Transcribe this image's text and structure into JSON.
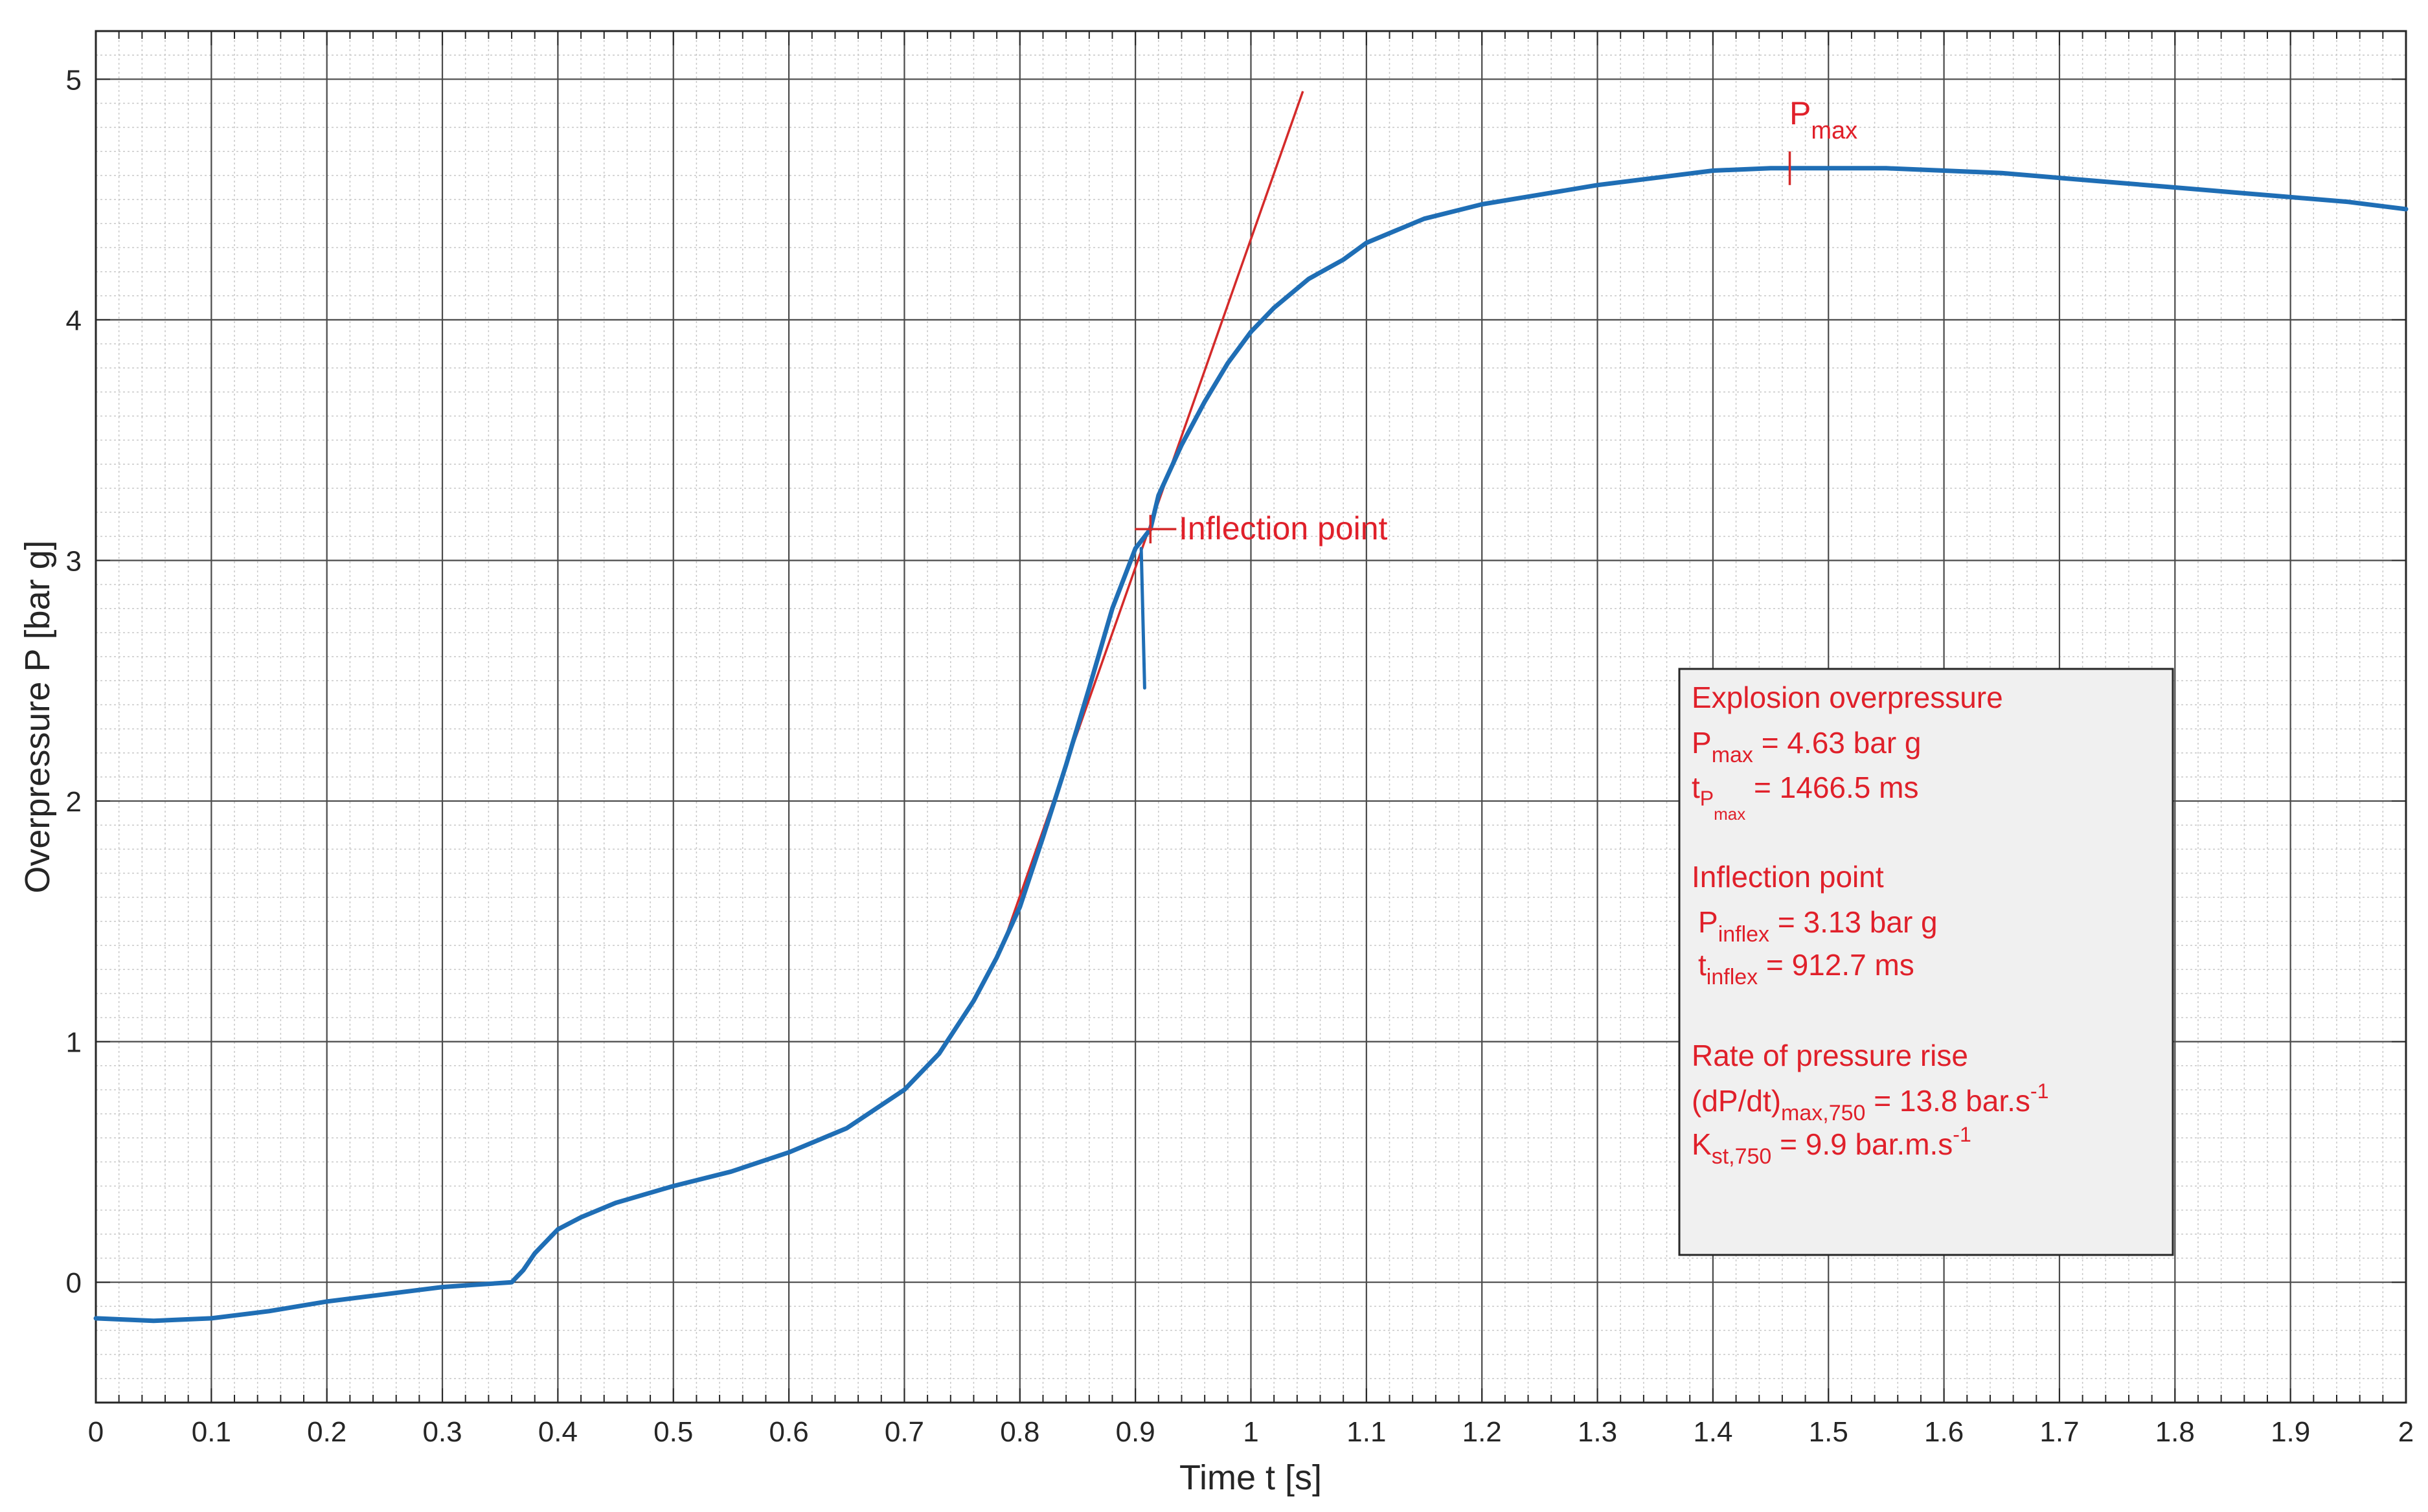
{
  "chart_data": {
    "type": "line",
    "title": "",
    "xlabel": "Time t [s]",
    "ylabel": "Overpressure P [bar g]",
    "xlim": [
      0,
      2
    ],
    "ylim": [
      -0.5,
      5.2
    ],
    "x_ticks": [
      0,
      0.1,
      0.2,
      0.3,
      0.4,
      0.5,
      0.6,
      0.7,
      0.8,
      0.9,
      1,
      1.1,
      1.2,
      1.3,
      1.4,
      1.5,
      1.6,
      1.7,
      1.8,
      1.9,
      2
    ],
    "x_tick_labels": [
      "0",
      "0.1",
      "0.2",
      "0.3",
      "0.4",
      "0.5",
      "0.6",
      "0.7",
      "0.8",
      "0.9",
      "1",
      "1.1",
      "1.2",
      "1.3",
      "1.4",
      "1.5",
      "1.6",
      "1.7",
      "1.8",
      "1.9",
      "2"
    ],
    "y_ticks": [
      0,
      1,
      2,
      3,
      4,
      5
    ],
    "y_tick_labels": [
      "0",
      "1",
      "2",
      "3",
      "4",
      "5"
    ],
    "grid": true,
    "minor_grid": true,
    "series": [
      {
        "color": "#1f6eb5",
        "x": [
          0,
          0.05,
          0.1,
          0.15,
          0.2,
          0.25,
          0.3,
          0.33,
          0.36,
          0.37,
          0.38,
          0.4,
          0.42,
          0.45,
          0.5,
          0.55,
          0.6,
          0.65,
          0.7,
          0.73,
          0.76,
          0.78,
          0.8,
          0.82,
          0.84,
          0.86,
          0.88,
          0.9,
          0.913,
          0.92,
          0.94,
          0.96,
          0.98,
          1.0,
          1.02,
          1.05,
          1.08,
          1.1,
          1.15,
          1.2,
          1.25,
          1.3,
          1.35,
          1.4,
          1.45,
          1.4665,
          1.5,
          1.55,
          1.6,
          1.65,
          1.7,
          1.75,
          1.8,
          1.85,
          1.9,
          1.95,
          2.0
        ],
        "y": [
          -0.15,
          -0.16,
          -0.15,
          -0.12,
          -0.08,
          -0.05,
          -0.02,
          -0.01,
          0.0,
          0.05,
          0.12,
          0.22,
          0.27,
          0.33,
          0.4,
          0.46,
          0.54,
          0.64,
          0.8,
          0.95,
          1.17,
          1.35,
          1.56,
          1.85,
          2.15,
          2.47,
          2.8,
          3.05,
          3.13,
          3.27,
          3.48,
          3.66,
          3.82,
          3.95,
          4.05,
          4.17,
          4.25,
          4.32,
          4.42,
          4.48,
          4.52,
          4.56,
          4.59,
          4.62,
          4.63,
          4.63,
          4.63,
          4.63,
          4.62,
          4.61,
          4.59,
          4.57,
          4.55,
          4.53,
          4.51,
          4.49,
          4.46
        ]
      },
      {
        "color": "#1f6eb5",
        "x": [
          0.905,
          0.908
        ],
        "y": [
          3.05,
          2.47
        ]
      }
    ],
    "tangent_line": {
      "color": "#d42a2a",
      "x": [
        0.785,
        1.045
      ],
      "y": [
        1.4,
        4.95
      ]
    },
    "markers": [
      {
        "label": "P",
        "subscript": "max",
        "x": 1.4665,
        "y": 4.63
      },
      {
        "label": "Inflection point",
        "subscript": "",
        "x": 0.913,
        "y": 3.13
      }
    ],
    "annotation_box": {
      "heading_1": "Explosion overpressure",
      "pmax_label": "P",
      "pmax_sub": "max",
      "pmax_value": " = 4.63 bar g",
      "tpmax_label": "t",
      "tpmax_sub": "P",
      "tpmax_subsub": "max",
      "tpmax_value": " = 1466.5 ms",
      "heading_2": "Inflection point",
      "pinflex_label": "P",
      "pinflex_sub": "inflex",
      "pinflex_value": " = 3.13 bar g",
      "tinflex_label": "t",
      "tinflex_sub": "inflex",
      "tinflex_value": " = 912.7 ms",
      "heading_3": "Rate of pressure rise",
      "dpdt_label": "(dP/dt)",
      "dpdt_sub": "max,750",
      "dpdt_value": " = 13.8 bar.s",
      "dpdt_sup": "-1",
      "kst_label": "K",
      "kst_sub": "st,750",
      "kst_value": " = 9.9 bar.m.s",
      "kst_sup": "-1"
    }
  }
}
